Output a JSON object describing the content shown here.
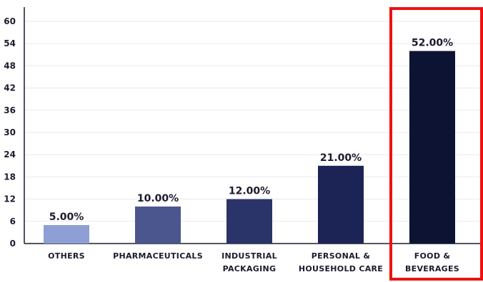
{
  "chart_data": {
    "type": "bar",
    "categories": [
      [
        "OTHERS"
      ],
      [
        "PHARMACEUTICALS"
      ],
      [
        "INDUSTRIAL",
        "PACKAGING"
      ],
      [
        "PERSONAL &",
        "HOUSEHOLD CARE"
      ],
      [
        "FOOD &",
        "BEVERAGES"
      ]
    ],
    "values": [
      5,
      10,
      12,
      21,
      52
    ],
    "data_labels": [
      "5.00%",
      "10.00%",
      "12.00%",
      "21.00%",
      "52.00%"
    ],
    "bar_colors": [
      "#8e9fd6",
      "#4b568f",
      "#2a3468",
      "#1c2456",
      "#0d1433"
    ],
    "yticks": [
      "0",
      "6",
      "12",
      "18",
      "24",
      "30",
      "36",
      "42",
      "48",
      "54",
      "60"
    ],
    "ylim": [
      0,
      60
    ],
    "grid": true,
    "highlight": {
      "category_index": 4,
      "color": "#ee1111"
    },
    "title": "",
    "xlabel": "",
    "ylabel": ""
  }
}
